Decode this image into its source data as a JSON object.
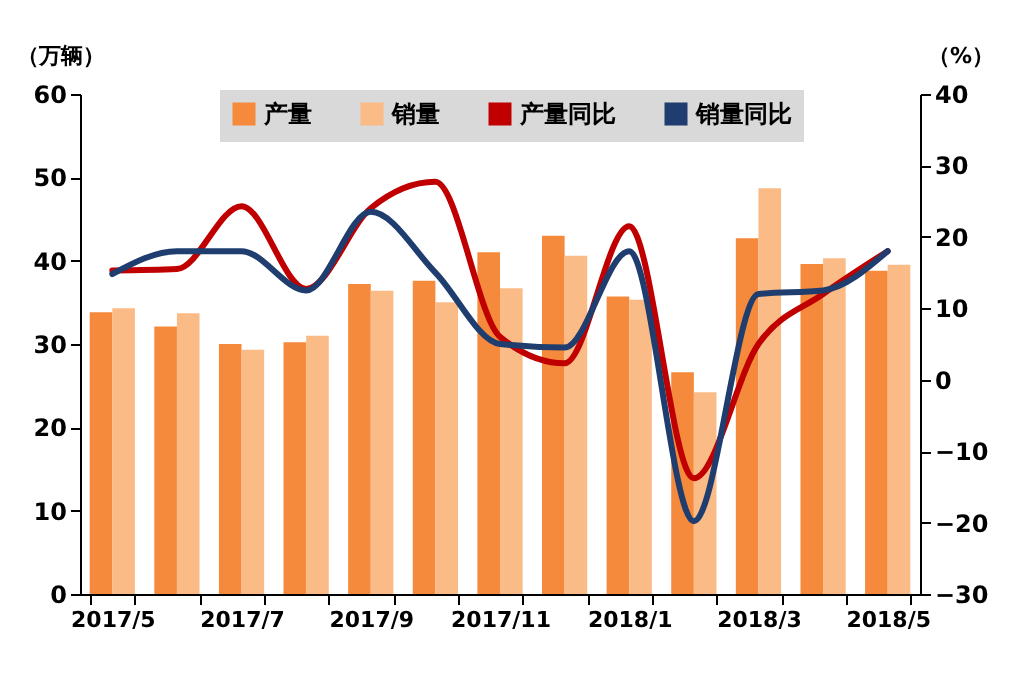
{
  "chart_data": {
    "type": "bar",
    "ylabel": "（万辆）",
    "y2label": "（%）",
    "categories": [
      "2017/5",
      null,
      "2017/7",
      null,
      "2017/9",
      null,
      "2017/11",
      null,
      "2018/1",
      null,
      "2018/3",
      null,
      "2018/5"
    ],
    "series": [
      {
        "name": "产量",
        "color": "#f58a3c",
        "values": [
          33.8,
          32.1,
          30.0,
          30.2,
          37.2,
          37.6,
          41.0,
          43.0,
          35.7,
          26.6,
          42.7,
          39.6,
          38.8
        ]
      },
      {
        "name": "销量",
        "color": "#fbbb86",
        "values": [
          34.3,
          33.7,
          29.3,
          31.0,
          36.4,
          35.0,
          36.7,
          40.6,
          35.3,
          24.2,
          48.7,
          40.3,
          39.5
        ]
      },
      {
        "name": "产量同比",
        "color": "#c00000",
        "type": "line",
        "axis": "y2",
        "values": [
          15.3,
          15.5,
          24.3,
          12.7,
          24,
          27.7,
          6,
          2.3,
          21.5,
          -13.8,
          5,
          12,
          18
        ]
      },
      {
        "name": "销量同比",
        "color": "#1f3d6e",
        "type": "line",
        "axis": "y2",
        "values": [
          14.8,
          18,
          18,
          12.5,
          23.5,
          15,
          5,
          4.5,
          18,
          -19.8,
          12,
          12.5,
          18
        ]
      }
    ],
    "ylim": [
      0,
      60
    ],
    "yticks": [
      0,
      10,
      20,
      30,
      40,
      50,
      60
    ],
    "y2lim": [
      -30,
      40
    ],
    "y2ticks": [
      -30,
      -20,
      -10,
      0,
      10,
      20,
      30,
      40
    ],
    "grid": false,
    "legend": "top",
    "line_style": "solid",
    "marker": "none"
  }
}
